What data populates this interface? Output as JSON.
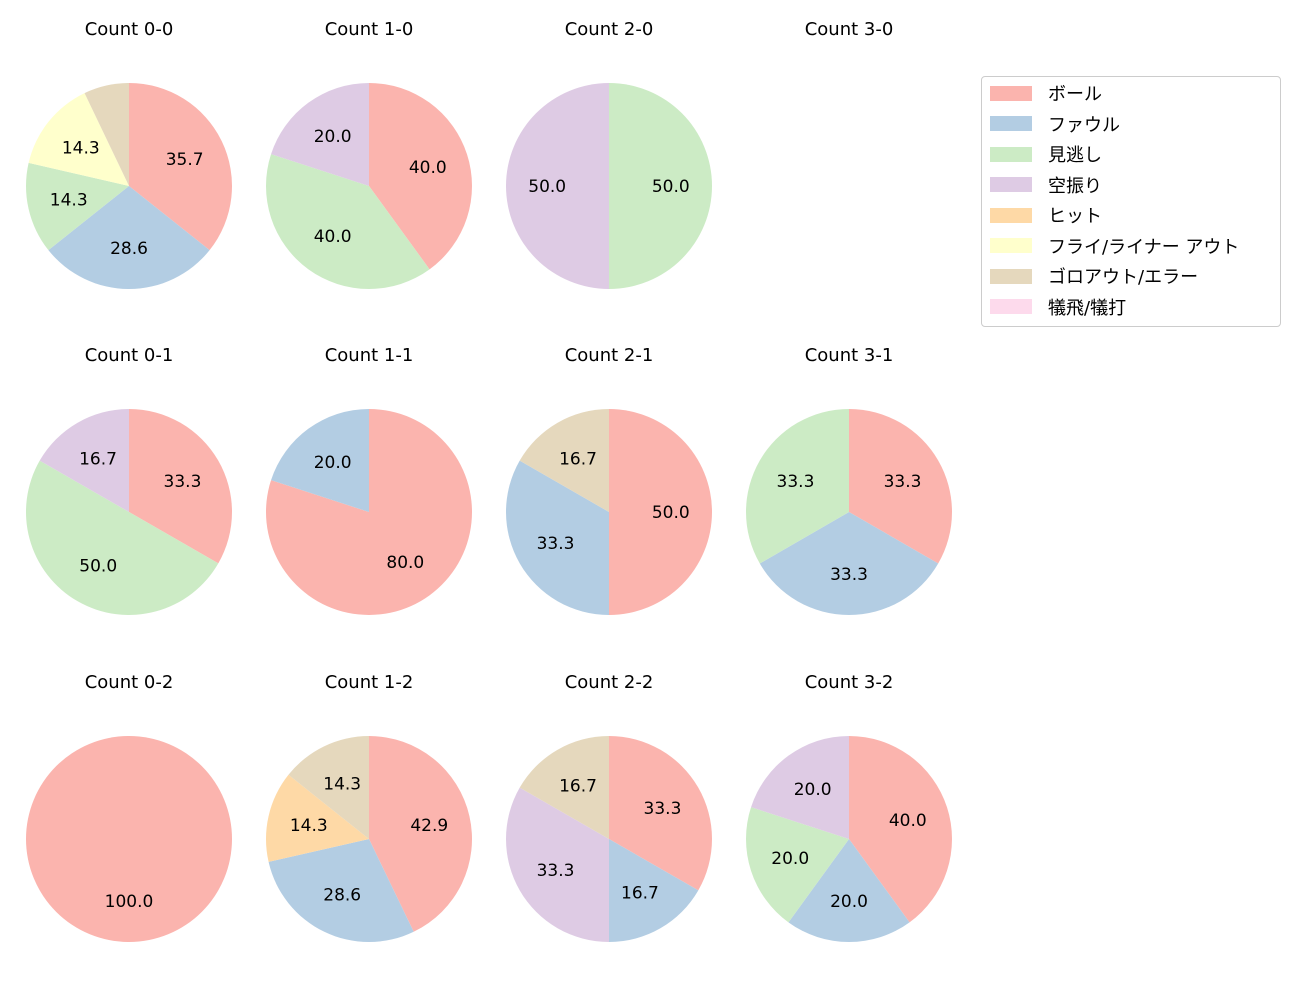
{
  "chart_data": {
    "type": "pie",
    "categories": [
      "ボール",
      "ファウル",
      "見逃し",
      "空振り",
      "ヒット",
      "フライ/ライナー アウト",
      "ゴロアウト/エラー",
      "犠飛/犠打"
    ],
    "colors": [
      "#fbb4ae",
      "#b3cde3",
      "#ccebc5",
      "#decbe4",
      "#fed9a6",
      "#ffffcc",
      "#e5d8bd",
      "#fddaec"
    ],
    "legend_position": "right",
    "charts": [
      {
        "title": "Count 0-0",
        "values": [
          35.7,
          28.6,
          14.3,
          0,
          0,
          14.3,
          7.1,
          0
        ]
      },
      {
        "title": "Count 1-0",
        "values": [
          40.0,
          0,
          40.0,
          20.0,
          0,
          0,
          0,
          0
        ]
      },
      {
        "title": "Count 2-0",
        "values": [
          0,
          0,
          50.0,
          50.0,
          0,
          0,
          0,
          0
        ]
      },
      {
        "title": "Count 3-0",
        "values": [
          0,
          0,
          0,
          0,
          0,
          0,
          0,
          0
        ]
      },
      {
        "title": "Count 0-1",
        "values": [
          33.3,
          0,
          50.0,
          16.7,
          0,
          0,
          0,
          0
        ]
      },
      {
        "title": "Count 1-1",
        "values": [
          80.0,
          20.0,
          0,
          0,
          0,
          0,
          0,
          0
        ]
      },
      {
        "title": "Count 2-1",
        "values": [
          50.0,
          33.3,
          0,
          0,
          0,
          0,
          16.7,
          0
        ]
      },
      {
        "title": "Count 3-1",
        "values": [
          33.3,
          33.3,
          33.3,
          0,
          0,
          0,
          0,
          0
        ]
      },
      {
        "title": "Count 0-2",
        "values": [
          100.0,
          0,
          0,
          0,
          0,
          0,
          0,
          0
        ]
      },
      {
        "title": "Count 1-2",
        "values": [
          42.9,
          28.6,
          0,
          0,
          14.3,
          0,
          14.3,
          0
        ]
      },
      {
        "title": "Count 2-2",
        "values": [
          33.3,
          16.7,
          0,
          33.3,
          0,
          0,
          16.7,
          0
        ]
      },
      {
        "title": "Count 3-2",
        "values": [
          40.0,
          20.0,
          20.0,
          20.0,
          0,
          0,
          0,
          0
        ]
      }
    ]
  }
}
